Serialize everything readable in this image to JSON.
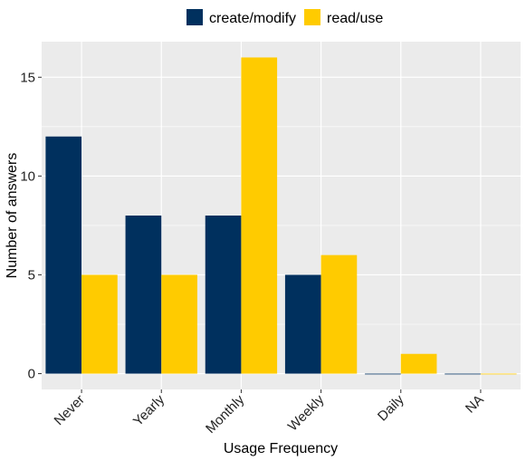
{
  "chart_data": {
    "type": "bar",
    "categories": [
      "Never",
      "Yearly",
      "Monthly",
      "Weekly",
      "Daily",
      "NA"
    ],
    "series": [
      {
        "name": "create/modify",
        "values": [
          12,
          8,
          8,
          5,
          0,
          0
        ],
        "color": "#00305e"
      },
      {
        "name": "read/use",
        "values": [
          5,
          5,
          16,
          6,
          1,
          0
        ],
        "color": "#ffcb00"
      }
    ],
    "xlabel": "Usage Frequency",
    "ylabel": "Number of answers",
    "ylim": [
      -0.8,
      16.8
    ],
    "yticks": [
      0,
      5,
      10,
      15
    ],
    "grid": true,
    "legend_position": "top",
    "panel_background": "#ebebeb"
  }
}
